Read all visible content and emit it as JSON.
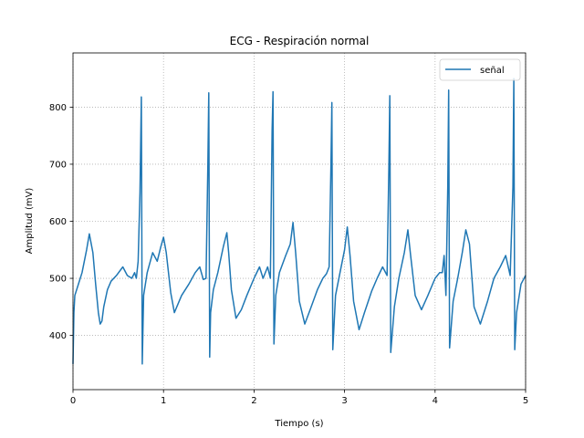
{
  "chart_data": {
    "type": "line",
    "title": "ECG - Respiración normal",
    "xlabel": "Tiempo (s)",
    "ylabel": "Amplitud (mV)",
    "xlim": [
      0,
      5
    ],
    "ylim": [
      305,
      895
    ],
    "xticks": [
      0,
      1,
      2,
      3,
      4,
      5
    ],
    "yticks": [
      400,
      500,
      600,
      700,
      800
    ],
    "grid": true,
    "legend_position": "top-right",
    "series": [
      {
        "name": "señal",
        "color": "#1f77b4",
        "x": [
          0.0,
          0.01,
          0.02,
          0.05,
          0.1,
          0.15,
          0.18,
          0.22,
          0.25,
          0.28,
          0.3,
          0.32,
          0.34,
          0.38,
          0.42,
          0.48,
          0.55,
          0.6,
          0.65,
          0.68,
          0.7,
          0.72,
          0.74,
          0.755,
          0.765,
          0.78,
          0.82,
          0.88,
          0.93,
          0.97,
          1.0,
          1.03,
          1.08,
          1.12,
          1.2,
          1.28,
          1.35,
          1.4,
          1.44,
          1.47,
          1.49,
          1.5,
          1.51,
          1.52,
          1.55,
          1.6,
          1.66,
          1.7,
          1.72,
          1.75,
          1.8,
          1.86,
          1.92,
          2.0,
          2.06,
          2.1,
          2.15,
          2.18,
          2.2,
          2.21,
          2.22,
          2.24,
          2.28,
          2.35,
          2.4,
          2.43,
          2.46,
          2.5,
          2.56,
          2.62,
          2.7,
          2.76,
          2.8,
          2.83,
          2.85,
          2.86,
          2.87,
          2.9,
          2.95,
          3.0,
          3.03,
          3.06,
          3.1,
          3.16,
          3.22,
          3.3,
          3.36,
          3.42,
          3.47,
          3.49,
          3.5,
          3.51,
          3.55,
          3.6,
          3.66,
          3.7,
          3.73,
          3.78,
          3.85,
          3.92,
          4.0,
          4.05,
          4.08,
          4.1,
          4.12,
          4.14,
          4.15,
          4.16,
          4.2,
          4.25,
          4.3,
          4.34,
          4.38,
          4.43,
          4.5,
          4.58,
          4.65,
          4.72,
          4.78,
          4.83,
          4.86,
          4.87,
          4.88,
          4.9,
          4.95,
          5.0
        ],
        "y": [
          350,
          440,
          470,
          485,
          510,
          550,
          578,
          545,
          490,
          440,
          420,
          425,
          450,
          480,
          495,
          505,
          520,
          505,
          500,
          510,
          500,
          530,
          650,
          818,
          350,
          470,
          510,
          545,
          530,
          555,
          572,
          545,
          475,
          440,
          470,
          490,
          510,
          520,
          498,
          500,
          700,
          825,
          362,
          440,
          480,
          510,
          555,
          580,
          545,
          480,
          430,
          445,
          470,
          500,
          520,
          500,
          520,
          500,
          760,
          827,
          385,
          470,
          510,
          540,
          560,
          598,
          545,
          460,
          420,
          445,
          480,
          500,
          508,
          520,
          700,
          808,
          375,
          470,
          510,
          550,
          590,
          540,
          460,
          410,
          440,
          478,
          500,
          520,
          505,
          700,
          820,
          370,
          450,
          500,
          545,
          585,
          540,
          470,
          445,
          470,
          500,
          510,
          510,
          540,
          470,
          660,
          830,
          378,
          460,
          500,
          545,
          585,
          560,
          450,
          420,
          460,
          500,
          520,
          540,
          505,
          660,
          850,
          375,
          440,
          490,
          505
        ]
      }
    ]
  }
}
